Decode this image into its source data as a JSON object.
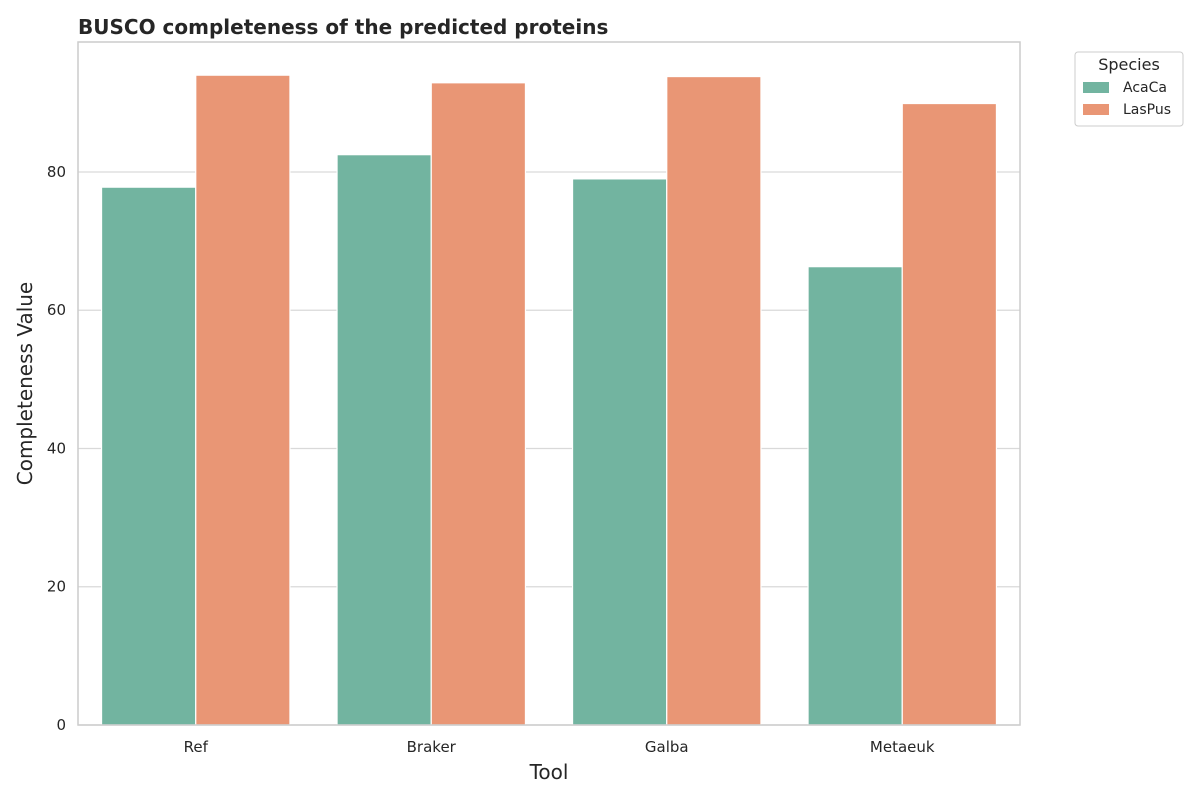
{
  "chart_data": {
    "type": "bar",
    "title": "BUSCO completeness of the predicted proteins",
    "xlabel": "Tool",
    "ylabel": "Completeness Value",
    "categories": [
      "Ref",
      "Braker",
      "Galba",
      "Metaeuk"
    ],
    "series": [
      {
        "name": "AcaCa",
        "color": "#72b4a0",
        "values": [
          77.8,
          82.5,
          79.0,
          66.3
        ]
      },
      {
        "name": "LasPus",
        "color": "#e99675",
        "values": [
          94.0,
          92.9,
          93.8,
          89.9
        ]
      }
    ],
    "ylim": [
      0,
      98.8
    ],
    "yticks": [
      0,
      20,
      40,
      60,
      80
    ],
    "grid": "horizontal",
    "legend": {
      "title": "Species",
      "placement": "outside-top-right"
    }
  }
}
